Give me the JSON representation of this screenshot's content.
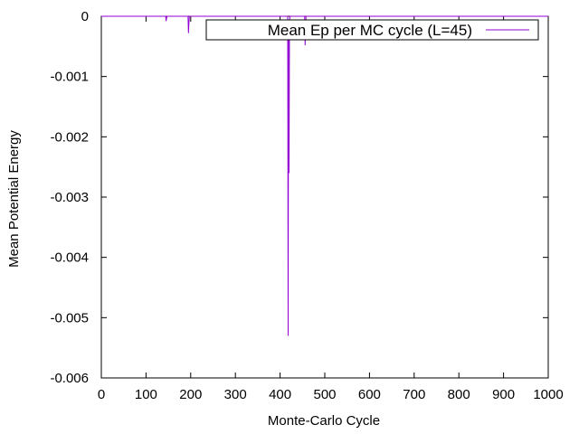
{
  "chart_data": {
    "type": "line",
    "xlabel": "Monte-Carlo Cycle",
    "ylabel": "Mean Potential Energy",
    "xlim": [
      0,
      1000
    ],
    "ylim": [
      -0.006,
      0
    ],
    "xticks": [
      0,
      100,
      200,
      300,
      400,
      500,
      600,
      700,
      800,
      900,
      1000
    ],
    "yticks": [
      {
        "value": 0,
        "label": "0"
      },
      {
        "value": -0.001,
        "label": "-0.001"
      },
      {
        "value": -0.002,
        "label": "-0.002"
      },
      {
        "value": -0.003,
        "label": "-0.003"
      },
      {
        "value": -0.004,
        "label": "-0.004"
      },
      {
        "value": -0.005,
        "label": "-0.005"
      },
      {
        "value": -0.006,
        "label": "-0.006"
      }
    ],
    "grid": false,
    "legend_position": "top-right",
    "series": [
      {
        "name": "Mean Ep per MC cycle (L=45)",
        "color": "#9400d3",
        "x": [
          0,
          144,
          145,
          146,
          147,
          194,
          195,
          196,
          197,
          417,
          418,
          419,
          420,
          421,
          422,
          455,
          456,
          457,
          458,
          1000
        ],
        "y": [
          0,
          0,
          -8e-05,
          -3e-05,
          0,
          0,
          -0.00028,
          -0.00012,
          0,
          0,
          -0.0053,
          -0.0003,
          -0.0026,
          -0.0001,
          0,
          0,
          -0.00048,
          -0.00015,
          0,
          0
        ]
      }
    ]
  }
}
